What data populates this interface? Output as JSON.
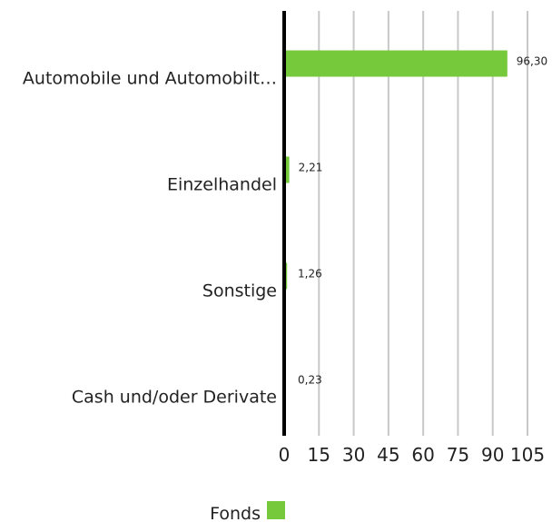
{
  "chart_data": {
    "type": "hbar",
    "categories": [
      "Automobile und Automobilt…",
      "Einzelhandel",
      "Sonstige",
      "Cash und/oder Derivate"
    ],
    "series": [
      {
        "name": "Fonds",
        "color": "#76c93a",
        "values": [
          96.3,
          2.21,
          1.26,
          0.23
        ],
        "value_labels": [
          "96,30",
          "2,21",
          "1,26",
          "0,23"
        ]
      }
    ],
    "xlim": [
      0,
      105
    ],
    "xticks": [
      0,
      15,
      30,
      45,
      60,
      75,
      90,
      105
    ],
    "grid": true,
    "legend": "bottom"
  }
}
